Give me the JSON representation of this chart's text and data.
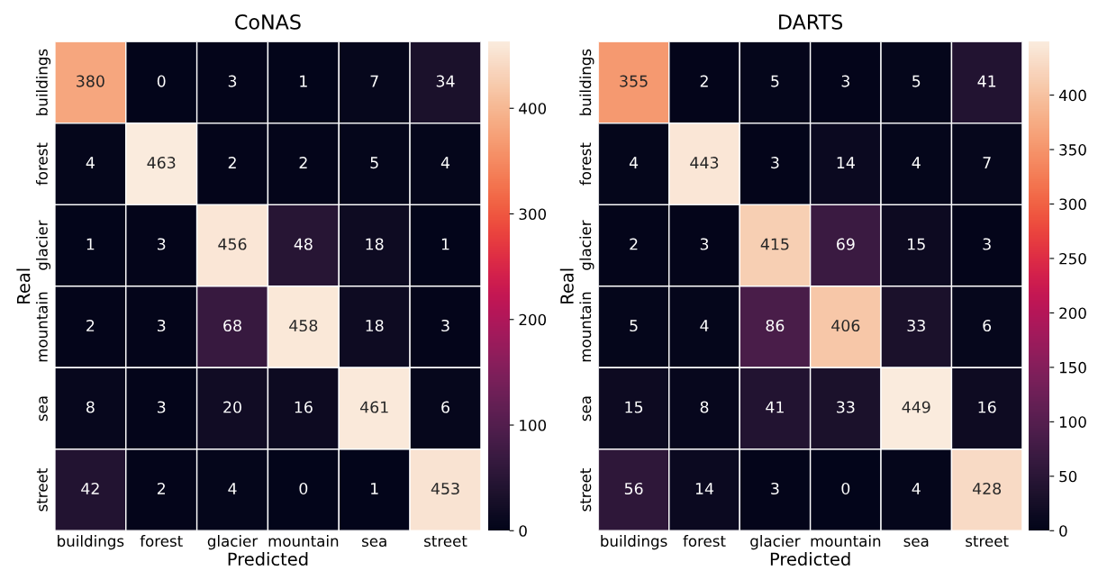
{
  "chart_data": [
    {
      "type": "heatmap",
      "title": "CoNAS",
      "xlabel": "Predicted",
      "ylabel": "Real",
      "categories": [
        "buildings",
        "forest",
        "glacier",
        "mountain",
        "sea",
        "street"
      ],
      "y_categories": [
        "buildings",
        "forest",
        "glacier",
        "mountain",
        "sea",
        "street"
      ],
      "cells": [
        [
          380,
          0,
          3,
          1,
          7,
          34
        ],
        [
          4,
          463,
          2,
          2,
          5,
          4
        ],
        [
          1,
          3,
          456,
          48,
          18,
          1
        ],
        [
          2,
          3,
          68,
          458,
          18,
          3
        ],
        [
          8,
          3,
          20,
          16,
          461,
          6
        ],
        [
          42,
          2,
          4,
          0,
          1,
          453
        ]
      ],
      "clim": [
        0,
        463
      ],
      "cticks": [
        0,
        100,
        200,
        300,
        400
      ],
      "data_labels": true
    },
    {
      "type": "heatmap",
      "title": "DARTS",
      "xlabel": "Predicted",
      "ylabel": "Real",
      "categories": [
        "buildings",
        "forest",
        "glacier",
        "mountain",
        "sea",
        "street"
      ],
      "y_categories": [
        "buildings",
        "forest",
        "glacier",
        "mountain",
        "sea",
        "street"
      ],
      "cells": [
        [
          355,
          2,
          5,
          3,
          5,
          41
        ],
        [
          4,
          443,
          3,
          14,
          4,
          7
        ],
        [
          2,
          3,
          415,
          69,
          15,
          3
        ],
        [
          5,
          4,
          86,
          406,
          33,
          6
        ],
        [
          15,
          8,
          41,
          33,
          449,
          16
        ],
        [
          56,
          14,
          3,
          0,
          4,
          428
        ]
      ],
      "clim": [
        0,
        449
      ],
      "cticks": [
        0,
        50,
        100,
        150,
        200,
        250,
        300,
        350,
        400
      ],
      "data_labels": true
    }
  ]
}
